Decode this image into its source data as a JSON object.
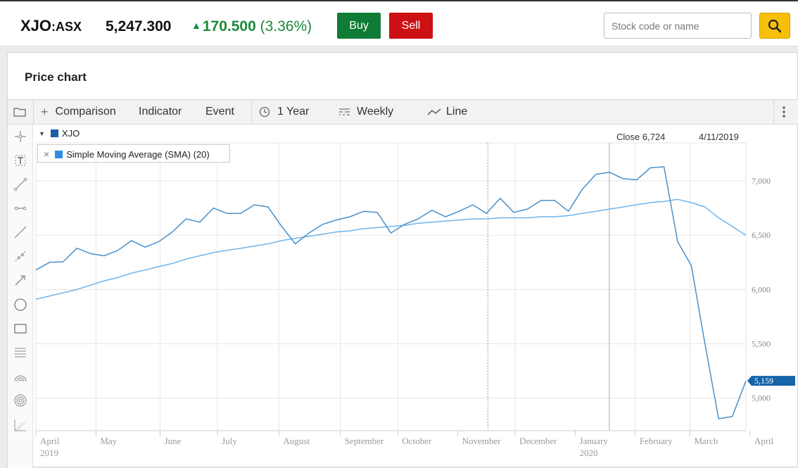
{
  "header": {
    "symbol": "XJO",
    "exchange": ":ASX",
    "price": "5,247.300",
    "change_abs": "170.500",
    "change_pct": "(3.36%)",
    "buy_label": "Buy",
    "sell_label": "Sell",
    "search_placeholder": "Stock code or name",
    "search_value": ""
  },
  "panel": {
    "title": "Price chart"
  },
  "toolbar": {
    "comparison": "Comparison",
    "indicator": "Indicator",
    "event": "Event",
    "period": "1 Year",
    "interval": "Weekly",
    "style": "Line"
  },
  "legend": {
    "main_series": "XJO",
    "main_color": "#1a5ea8",
    "sma_label": "Simple Moving Average (SMA) (20)",
    "sma_color": "#2d8de8",
    "close_text": "Close 6,724",
    "close_date": "4/11/2019",
    "last_value_badge": "5,159",
    "badge_color": "#1565a8"
  },
  "icons": [
    "folder-icon",
    "crosshair-icon",
    "text-tool-icon",
    "line-tool-icon",
    "ray-tool-icon",
    "trend-line-icon",
    "segment-tool-icon",
    "arrow-tool-icon",
    "circle-tool-icon",
    "rectangle-tool-icon",
    "fibonacci-icon",
    "arc-tool-icon",
    "spiral-tool-icon",
    "grid-tool-icon",
    "search-icon",
    "clock-icon",
    "interval-icon",
    "line-style-icon",
    "more-icon"
  ],
  "chart_data": {
    "type": "line",
    "ylim": [
      4700,
      7350
    ],
    "yticks": [
      5000,
      5500,
      6000,
      6500,
      7000
    ],
    "ytick_labels": [
      "5,000",
      "5,500",
      "6,000",
      "6,500",
      "7,000"
    ],
    "xticks": [
      {
        "label": "April",
        "sub": "2019",
        "week": 0
      },
      {
        "label": "May",
        "sub": "",
        "week": 4.4
      },
      {
        "label": "June",
        "sub": "",
        "week": 9.1
      },
      {
        "label": "July",
        "sub": "",
        "week": 13.3
      },
      {
        "label": "August",
        "sub": "",
        "week": 17.8
      },
      {
        "label": "September",
        "sub": "",
        "week": 22.3
      },
      {
        "label": "October",
        "sub": "",
        "week": 26.5
      },
      {
        "label": "November",
        "sub": "",
        "week": 30.9
      },
      {
        "label": "December",
        "sub": "",
        "week": 35.1
      },
      {
        "label": "January",
        "sub": "2020",
        "week": 39.5
      },
      {
        "label": "February",
        "sub": "",
        "week": 43.9
      },
      {
        "label": "March",
        "sub": "",
        "week": 47.9
      },
      {
        "label": "April",
        "sub": "",
        "week": 52.3
      }
    ],
    "vlines_weeks": [
      4.4,
      9.1,
      13.3,
      17.8,
      22.3,
      26.5,
      35.1,
      43.9,
      47.9
    ],
    "dotted_line_week": 33.1,
    "year_line_week": 42.0,
    "series": [
      {
        "name": "XJO",
        "color": "#4a90c8",
        "values": [
          6180,
          6250,
          6255,
          6380,
          6330,
          6310,
          6360,
          6450,
          6390,
          6440,
          6530,
          6650,
          6620,
          6750,
          6700,
          6700,
          6780,
          6760,
          6580,
          6420,
          6520,
          6600,
          6640,
          6670,
          6720,
          6710,
          6520,
          6600,
          6650,
          6730,
          6670,
          6720,
          6780,
          6700,
          6840,
          6710,
          6740,
          6820,
          6820,
          6720,
          6920,
          7060,
          7080,
          7020,
          7010,
          7120,
          7130,
          6440,
          6220,
          5500,
          4810,
          4830,
          5159
        ]
      },
      {
        "name": "Simple Moving Average (SMA) (20)",
        "color": "#6fb4ea",
        "values": [
          5910,
          5940,
          5970,
          6000,
          6040,
          6080,
          6110,
          6150,
          6180,
          6210,
          6240,
          6280,
          6310,
          6340,
          6360,
          6380,
          6400,
          6420,
          6450,
          6470,
          6490,
          6510,
          6530,
          6540,
          6560,
          6570,
          6580,
          6590,
          6610,
          6620,
          6630,
          6640,
          6650,
          6650,
          6660,
          6660,
          6660,
          6670,
          6670,
          6680,
          6700,
          6720,
          6740,
          6760,
          6780,
          6800,
          6810,
          6830,
          6800,
          6760,
          6660,
          6580,
          6500
        ]
      }
    ]
  }
}
